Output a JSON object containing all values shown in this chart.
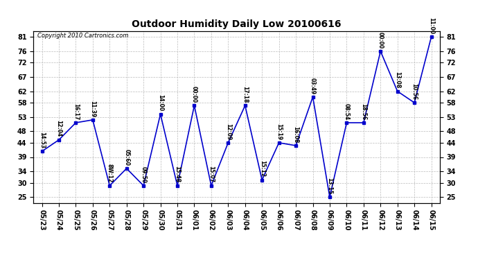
{
  "title": "Outdoor Humidity Daily Low 20100616",
  "copyright": "Copyright 2010 Cartronics.com",
  "x_labels": [
    "05/23",
    "05/24",
    "05/25",
    "05/26",
    "05/27",
    "05/28",
    "05/29",
    "05/30",
    "05/31",
    "06/01",
    "06/02",
    "06/03",
    "06/04",
    "06/05",
    "06/06",
    "06/07",
    "06/08",
    "06/09",
    "06/10",
    "06/11",
    "06/12",
    "06/13",
    "06/14",
    "06/15"
  ],
  "y_values": [
    41,
    45,
    51,
    52,
    29,
    35,
    29,
    54,
    29,
    57,
    29,
    44,
    57,
    31,
    44,
    43,
    60,
    25,
    51,
    51,
    76,
    62,
    58,
    81
  ],
  "point_labels": [
    "14:53",
    "12:04",
    "16:17",
    "11:39",
    "8W:12",
    "05:60",
    "09:50",
    "14:00",
    "15:48",
    "00:00",
    "15:07",
    "12:09",
    "17:18",
    "15:12",
    "15:19",
    "16:08",
    "03:49",
    "13:15",
    "08:54",
    "18:56",
    "00:00",
    "13:08",
    "10:56",
    "11:00"
  ],
  "y_ticks": [
    25,
    30,
    34,
    39,
    44,
    48,
    53,
    58,
    62,
    67,
    72,
    76,
    81
  ],
  "ylim": [
    23,
    83
  ],
  "line_color": "#0000cc",
  "marker_color": "#0000cc",
  "bg_color": "#ffffff",
  "grid_color": "#bbbbbb",
  "title_fontsize": 10,
  "label_fontsize": 5.5,
  "tick_fontsize": 7,
  "copyright_fontsize": 6
}
